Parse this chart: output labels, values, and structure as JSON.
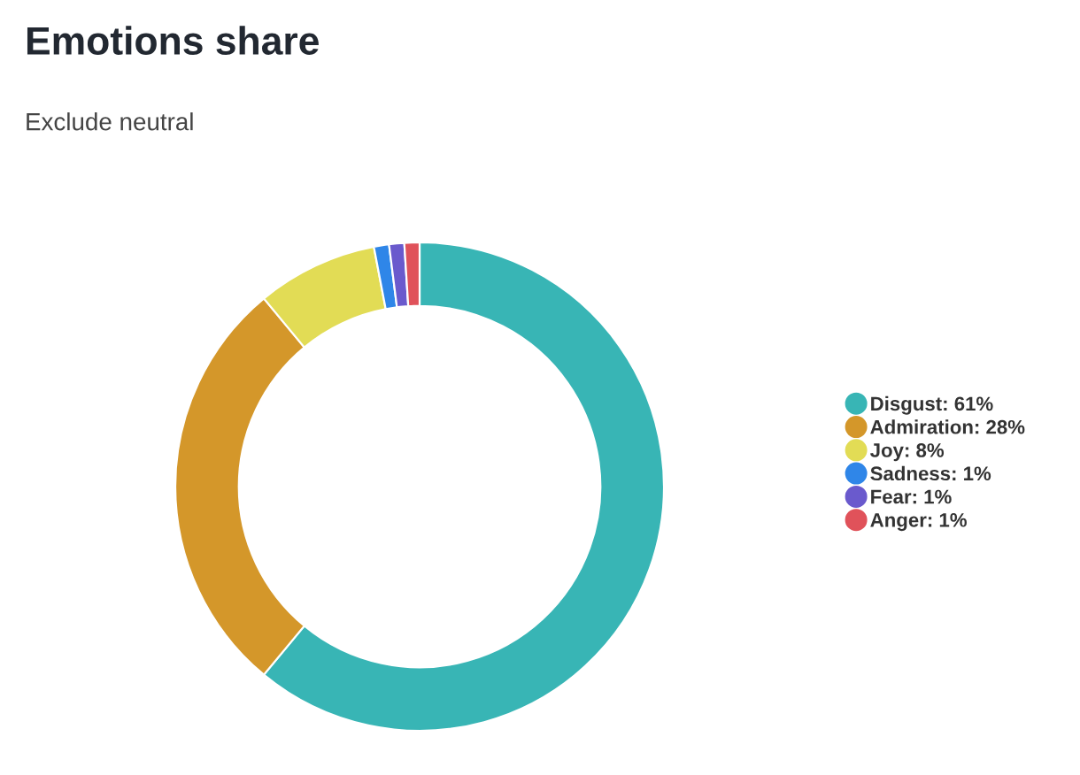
{
  "chart_data": {
    "type": "donut",
    "title": "Emotions share",
    "categories": [
      "Disgust",
      "Admiration",
      "Joy",
      "Sadness",
      "Fear",
      "Anger"
    ],
    "values": [
      61,
      28,
      8,
      1,
      1,
      1
    ],
    "value_labels": [
      "61%",
      "28%",
      "8%",
      "1%",
      "1%",
      "1%"
    ],
    "colors": [
      "#38b5b5",
      "#d4972a",
      "#e2dc55",
      "#2f86e8",
      "#6a5acd",
      "#e0525a"
    ],
    "legend": "right",
    "annotations": [
      "Exclude neutral"
    ]
  }
}
